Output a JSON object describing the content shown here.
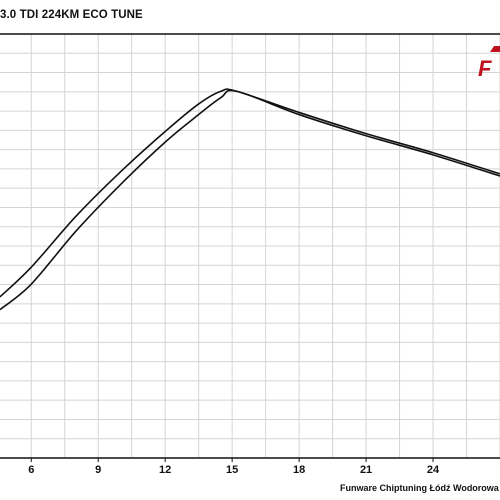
{
  "title": "3.0 TDI 224KM ECO TUNE",
  "footer": "Funware Chiptuning Łódź Wodorowa",
  "logo": {
    "text": "F",
    "accent": "#c0121c"
  },
  "chart_data": {
    "type": "line",
    "title": "3.0 TDI 224KM ECO TUNE",
    "xlabel": "",
    "ylabel": "",
    "xlim": [
      4.6,
      27.0
    ],
    "ylim": [
      0,
      1
    ],
    "x_ticks": [
      "6",
      "9",
      "12",
      "15",
      "18",
      "21",
      "24"
    ],
    "grid": true,
    "series": [
      {
        "x": [
          4.6,
          6,
          8,
          10,
          12,
          13.5,
          14.5,
          15.2,
          18,
          21,
          24,
          27
        ],
        "y": [
          0.38,
          0.45,
          0.57,
          0.675,
          0.77,
          0.835,
          0.865,
          0.865,
          0.815,
          0.765,
          0.72,
          0.67
        ]
      },
      {
        "x": [
          4.6,
          6,
          8,
          10,
          12,
          13.5,
          14.5,
          15.2,
          18,
          21,
          24,
          27
        ],
        "y": [
          0.35,
          0.41,
          0.535,
          0.645,
          0.745,
          0.81,
          0.85,
          0.865,
          0.81,
          0.76,
          0.715,
          0.665
        ]
      }
    ],
    "line_color": "#111111",
    "grid_color": "#d4d4d4",
    "axis_color": "#111111"
  }
}
